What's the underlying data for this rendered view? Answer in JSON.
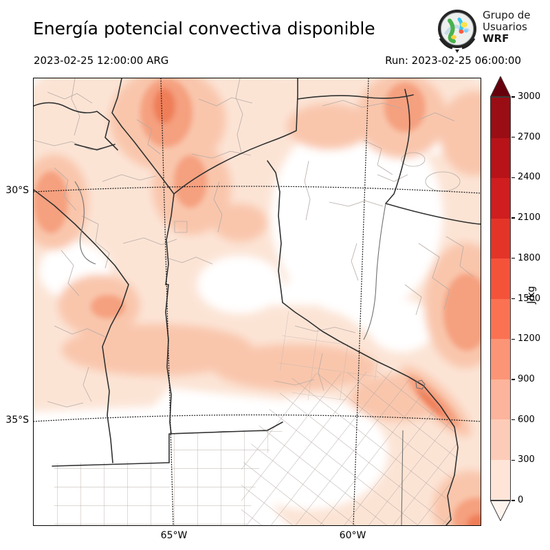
{
  "header": {
    "title": "Energía potencial convectiva disponible",
    "valid_time": "2023-02-25 12:00:00 ARG",
    "run_label": "Run: 2023-02-25 06:00:00",
    "logo": {
      "line1": "Grupo de",
      "line2": "Usuarios",
      "line3": "WRF"
    }
  },
  "axes": {
    "lat": [
      "30°S",
      "35°S"
    ],
    "lon": [
      "65°W",
      "60°W"
    ]
  },
  "colorbar": {
    "unit": "J/kg",
    "tick_labels": [
      "0",
      "300",
      "600",
      "900",
      "1200",
      "1500",
      "1800",
      "2100",
      "2400",
      "2700",
      "3000"
    ],
    "segment_colors_top_to_bottom": [
      "#9a0d14",
      "#b71319",
      "#d01d1f",
      "#e43428",
      "#f5523a",
      "#fb7252",
      "#fc9576",
      "#fcb49c",
      "#fdccb8",
      "#fee5d8"
    ],
    "extend_over_color": "#67000d",
    "extend_under_color": "#fff4ee"
  },
  "chart_data": {
    "type": "heatmap",
    "title": "Energía potencial convectiva disponible",
    "units": "J/kg",
    "valid": "2023-02-25 12:00:00 ARG",
    "run": "2023-02-25 06:00:00",
    "levels": [
      0,
      300,
      600,
      900,
      1200,
      1500,
      1800,
      2100,
      2400,
      2700,
      3000
    ],
    "level_colors": [
      "#fee5d8",
      "#fdccb8",
      "#fcb49c",
      "#fc9576",
      "#fb7252",
      "#f5523a",
      "#e43428",
      "#d01d1f",
      "#b71319",
      "#9a0d14"
    ],
    "extend_over_color": "#67000d",
    "extend_under_color": "#fff4ee",
    "lat_gridlines": [
      "30°S",
      "35°S"
    ],
    "lon_gridlines": [
      "65°W",
      "60°W"
    ],
    "legend_position": "right",
    "field_summary": "Mostly 0-600 J/kg over the west and center-north, local maxima 600-1200 J/kg at the far north-center, along the eastern edge and along the Río de la Plata coast; near 0 over the center-east and south-west."
  }
}
